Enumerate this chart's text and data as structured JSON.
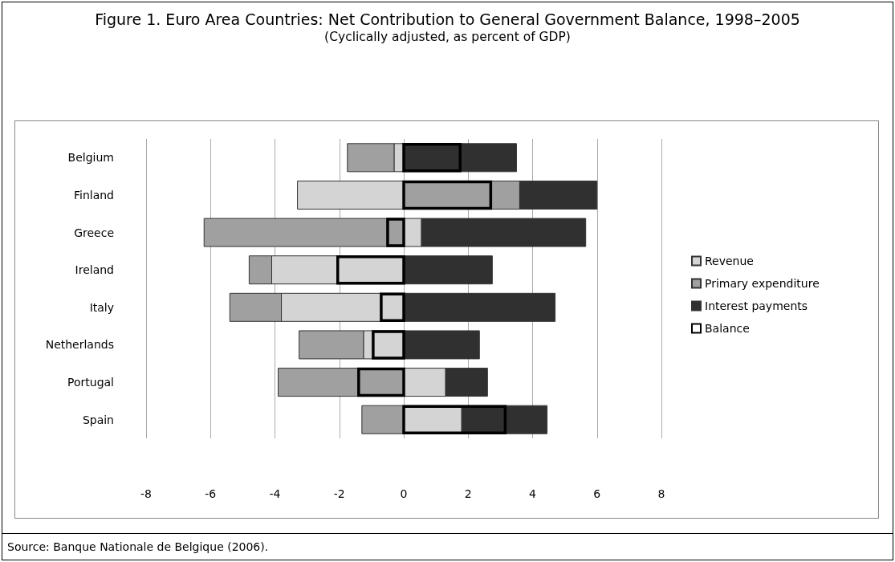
{
  "chart_data": {
    "type": "bar",
    "orientation": "horizontal",
    "title": "Figure 1. Euro Area Countries: Net Contribution to General Government Balance, 1998–2005",
    "subtitle": "(Cyclically adjusted, as percent of GDP)",
    "annotations": [
      "Source: Banque Nationale de Belgique (2006)."
    ],
    "categories": [
      "Belgium",
      "Finland",
      "Greece",
      "Ireland",
      "Italy",
      "Netherlands",
      "Portugal",
      "Spain"
    ],
    "series": [
      {
        "name": "Revenue",
        "color": "#d4d4d4",
        "base": [
          0,
          0,
          0,
          0,
          0,
          0,
          0,
          0
        ],
        "values": [
          -0.3,
          -3.3,
          0.55,
          -4.1,
          -3.8,
          -1.25,
          1.3,
          1.8
        ]
      },
      {
        "name": "Primary expenditure",
        "color": "#a0a0a0",
        "base": [
          -0.3,
          0,
          0,
          -4.1,
          -3.8,
          -1.25,
          0,
          0
        ],
        "values": [
          -1.45,
          3.6,
          -6.2,
          -0.7,
          -1.6,
          -2.0,
          -3.9,
          -1.3
        ]
      },
      {
        "name": "Interest payments",
        "color": "#303030",
        "base": [
          0,
          3.6,
          0.55,
          0,
          0,
          0,
          1.3,
          1.8
        ],
        "values": [
          3.5,
          2.4,
          5.1,
          2.75,
          4.7,
          2.35,
          1.3,
          2.65
        ]
      },
      {
        "name": "Balance",
        "color": "#000000",
        "values": [
          1.75,
          2.7,
          -0.5,
          -2.05,
          -0.7,
          -0.95,
          -1.4,
          3.15
        ]
      }
    ],
    "xlim": [
      -8,
      8
    ],
    "xticks": [
      -8,
      -6,
      -4,
      -2,
      0,
      2,
      4,
      6,
      8
    ],
    "grid": "x",
    "legend": "right"
  }
}
